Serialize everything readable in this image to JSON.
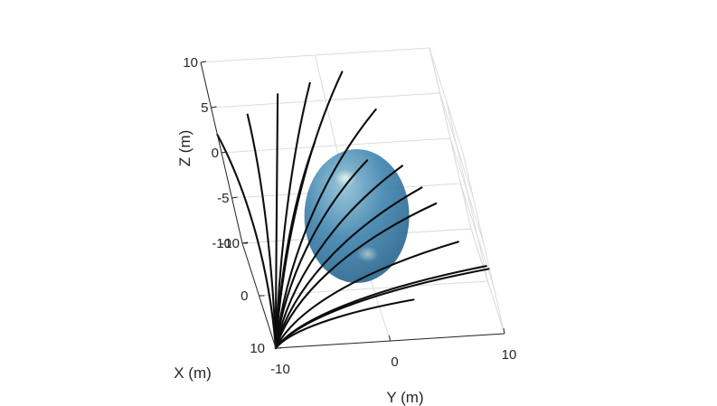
{
  "chart_data": {
    "type": "line",
    "subtype": "3d-trajectories-with-sphere",
    "title": "",
    "xlabel": "X (m)",
    "ylabel": "Y (m)",
    "zlabel": "Z (m)",
    "xlim": [
      -10,
      10
    ],
    "ylim": [
      -10,
      10
    ],
    "zlim": [
      -10,
      10
    ],
    "xticks": [
      "-10",
      "0",
      "10"
    ],
    "yticks": [
      "-10",
      "0",
      "10"
    ],
    "zticks": [
      "10",
      "5",
      "0",
      "-5",
      "-10"
    ],
    "grid": true,
    "legend": "none",
    "colors": {
      "trajectory": "#0d0d0d",
      "sphere": "#3e7fa6",
      "sphere_highlight": "#cfe3df",
      "grid": "#dcdcdc",
      "axis": "#262626"
    },
    "sphere": {
      "center": [
        0,
        0,
        -2
      ],
      "radius": 5
    },
    "trajectory_start": [
      10,
      -10,
      -10
    ],
    "trajectory_ends": [
      [
        -10,
        -10,
        2
      ],
      [
        -10,
        -7,
        4
      ],
      [
        -10,
        -4,
        6
      ],
      [
        -10,
        -1,
        7
      ],
      [
        -10,
        2,
        8
      ],
      [
        -4,
        -2,
        4
      ],
      [
        0,
        2,
        4
      ],
      [
        4,
        6,
        3
      ],
      [
        -2,
        5,
        2
      ],
      [
        2,
        7,
        0
      ],
      [
        6,
        8,
        -2
      ],
      [
        -6,
        4,
        6
      ],
      [
        8,
        10,
        -4
      ],
      [
        4,
        10,
        -6
      ],
      [
        6,
        3,
        -8
      ]
    ]
  }
}
